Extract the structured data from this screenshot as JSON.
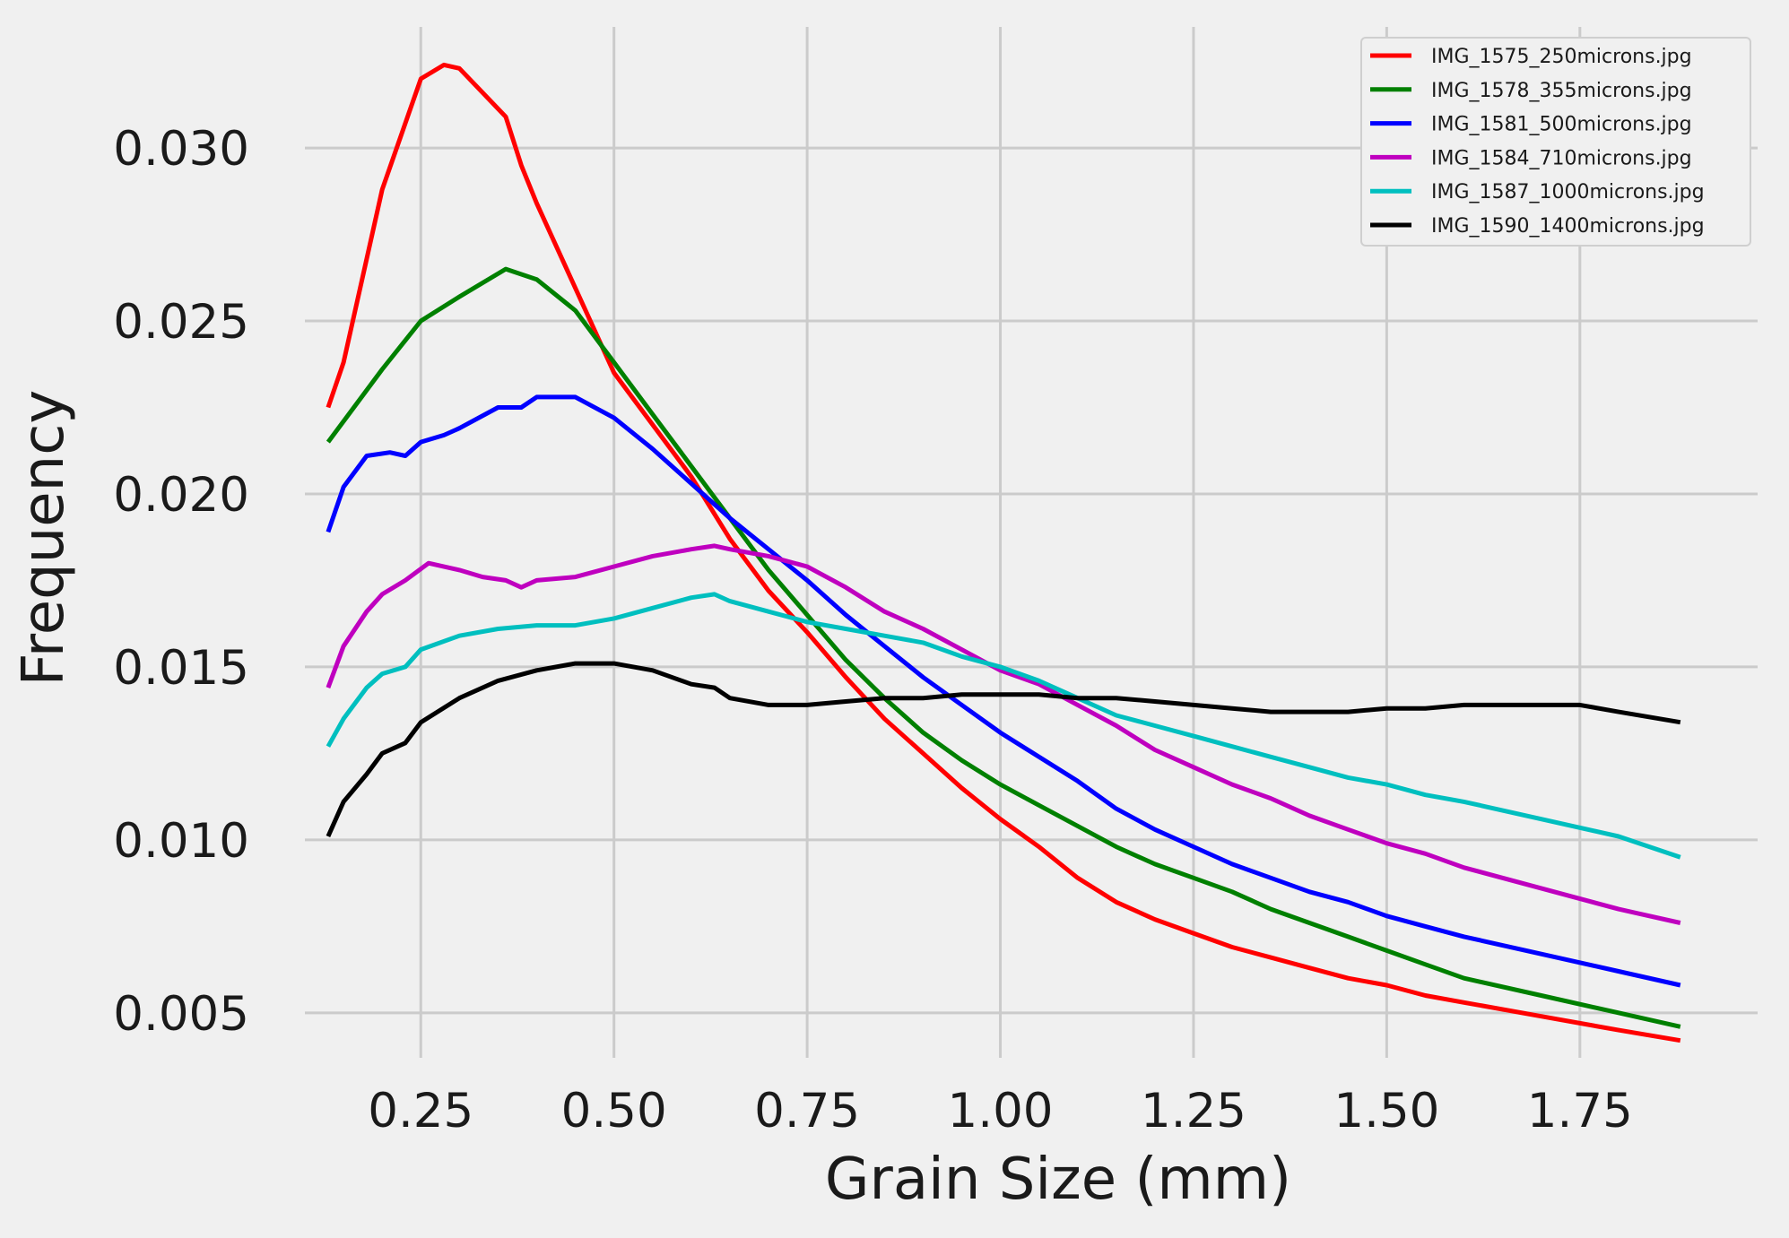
{
  "chart_data": {
    "type": "line",
    "title": "",
    "xlabel": "Grain Size (mm)",
    "ylabel": "Frequency",
    "xlim": [
      0.1,
      1.98
    ],
    "ylim": [
      0.0037,
      0.0335
    ],
    "xticks": [
      0.25,
      0.5,
      0.75,
      1.0,
      1.25,
      1.5,
      1.75
    ],
    "xtick_labels": [
      "0.25",
      "0.50",
      "0.75",
      "1.00",
      "1.25",
      "1.50",
      "1.75"
    ],
    "yticks": [
      0.005,
      0.01,
      0.015,
      0.02,
      0.025,
      0.03
    ],
    "ytick_labels": [
      "0.005",
      "0.010",
      "0.015",
      "0.020",
      "0.025",
      "0.030"
    ],
    "grid": true,
    "legend_position": "top-right",
    "background": "#f0f0f0",
    "series": [
      {
        "name": "IMG_1575_250microns.jpg",
        "color": "#ff0000",
        "x": [
          0.13,
          0.15,
          0.2,
          0.25,
          0.28,
          0.3,
          0.36,
          0.38,
          0.4,
          0.5,
          0.6,
          0.65,
          0.7,
          0.75,
          0.8,
          0.85,
          0.9,
          0.95,
          1.0,
          1.05,
          1.1,
          1.15,
          1.2,
          1.25,
          1.3,
          1.35,
          1.4,
          1.45,
          1.5,
          1.55,
          1.6,
          1.7,
          1.8,
          1.88
        ],
        "y": [
          0.0225,
          0.0238,
          0.0288,
          0.032,
          0.0324,
          0.0323,
          0.0309,
          0.0295,
          0.0284,
          0.0235,
          0.0205,
          0.0187,
          0.0172,
          0.016,
          0.0147,
          0.0135,
          0.0125,
          0.0115,
          0.0106,
          0.0098,
          0.0089,
          0.0082,
          0.0077,
          0.0073,
          0.0069,
          0.0066,
          0.0063,
          0.006,
          0.0058,
          0.0055,
          0.0053,
          0.0049,
          0.0045,
          0.0042
        ]
      },
      {
        "name": "IMG_1578_355microns.jpg",
        "color": "#008000",
        "x": [
          0.13,
          0.2,
          0.25,
          0.3,
          0.36,
          0.4,
          0.45,
          0.5,
          0.55,
          0.6,
          0.65,
          0.7,
          0.75,
          0.8,
          0.85,
          0.9,
          0.95,
          1.0,
          1.05,
          1.1,
          1.15,
          1.2,
          1.25,
          1.3,
          1.35,
          1.4,
          1.45,
          1.5,
          1.55,
          1.6,
          1.7,
          1.8,
          1.88
        ],
        "y": [
          0.0215,
          0.0236,
          0.025,
          0.0257,
          0.0265,
          0.0262,
          0.0253,
          0.0238,
          0.0223,
          0.0208,
          0.0193,
          0.0178,
          0.0165,
          0.0152,
          0.0141,
          0.0131,
          0.0123,
          0.0116,
          0.011,
          0.0104,
          0.0098,
          0.0093,
          0.0089,
          0.0085,
          0.008,
          0.0076,
          0.0072,
          0.0068,
          0.0064,
          0.006,
          0.0055,
          0.005,
          0.0046
        ]
      },
      {
        "name": "IMG_1581_500microns.jpg",
        "color": "#0000ff",
        "x": [
          0.13,
          0.15,
          0.18,
          0.21,
          0.23,
          0.25,
          0.28,
          0.3,
          0.35,
          0.38,
          0.4,
          0.45,
          0.5,
          0.55,
          0.6,
          0.65,
          0.7,
          0.75,
          0.8,
          0.85,
          0.9,
          0.95,
          1.0,
          1.05,
          1.1,
          1.15,
          1.2,
          1.25,
          1.3,
          1.35,
          1.4,
          1.45,
          1.5,
          1.55,
          1.6,
          1.7,
          1.8,
          1.88
        ],
        "y": [
          0.0189,
          0.0202,
          0.0211,
          0.0212,
          0.0211,
          0.0215,
          0.0217,
          0.0219,
          0.0225,
          0.0225,
          0.0228,
          0.0228,
          0.0222,
          0.0213,
          0.0203,
          0.0193,
          0.0184,
          0.0175,
          0.0165,
          0.0156,
          0.0147,
          0.0139,
          0.0131,
          0.0124,
          0.0117,
          0.0109,
          0.0103,
          0.0098,
          0.0093,
          0.0089,
          0.0085,
          0.0082,
          0.0078,
          0.0075,
          0.0072,
          0.0067,
          0.0062,
          0.0058
        ]
      },
      {
        "name": "IMG_1584_710microns.jpg",
        "color": "#bf00bf",
        "x": [
          0.13,
          0.15,
          0.18,
          0.2,
          0.23,
          0.26,
          0.3,
          0.33,
          0.36,
          0.38,
          0.4,
          0.45,
          0.5,
          0.55,
          0.6,
          0.63,
          0.65,
          0.7,
          0.75,
          0.8,
          0.85,
          0.9,
          0.95,
          1.0,
          1.05,
          1.1,
          1.15,
          1.2,
          1.25,
          1.3,
          1.35,
          1.4,
          1.45,
          1.5,
          1.55,
          1.6,
          1.7,
          1.8,
          1.88
        ],
        "y": [
          0.0144,
          0.0156,
          0.0166,
          0.0171,
          0.0175,
          0.018,
          0.0178,
          0.0176,
          0.0175,
          0.0173,
          0.0175,
          0.0176,
          0.0179,
          0.0182,
          0.0184,
          0.0185,
          0.0184,
          0.0182,
          0.0179,
          0.0173,
          0.0166,
          0.0161,
          0.0155,
          0.0149,
          0.0145,
          0.0139,
          0.0133,
          0.0126,
          0.0121,
          0.0116,
          0.0112,
          0.0107,
          0.0103,
          0.0099,
          0.0096,
          0.0092,
          0.0086,
          0.008,
          0.0076
        ]
      },
      {
        "name": "IMG_1587_1000microns.jpg",
        "color": "#00bfbf",
        "x": [
          0.13,
          0.15,
          0.18,
          0.2,
          0.23,
          0.25,
          0.3,
          0.35,
          0.4,
          0.45,
          0.5,
          0.55,
          0.6,
          0.63,
          0.65,
          0.7,
          0.75,
          0.8,
          0.85,
          0.9,
          0.95,
          1.0,
          1.05,
          1.1,
          1.15,
          1.2,
          1.25,
          1.3,
          1.35,
          1.4,
          1.45,
          1.5,
          1.55,
          1.6,
          1.7,
          1.8,
          1.88
        ],
        "y": [
          0.0127,
          0.0135,
          0.0144,
          0.0148,
          0.015,
          0.0155,
          0.0159,
          0.0161,
          0.0162,
          0.0162,
          0.0164,
          0.0167,
          0.017,
          0.0171,
          0.0169,
          0.0166,
          0.0163,
          0.0161,
          0.0159,
          0.0157,
          0.0153,
          0.015,
          0.0146,
          0.0141,
          0.0136,
          0.0133,
          0.013,
          0.0127,
          0.0124,
          0.0121,
          0.0118,
          0.0116,
          0.0113,
          0.0111,
          0.0106,
          0.0101,
          0.0095
        ]
      },
      {
        "name": "IMG_1590_1400microns.jpg",
        "color": "#000000",
        "x": [
          0.13,
          0.15,
          0.18,
          0.2,
          0.23,
          0.25,
          0.3,
          0.35,
          0.4,
          0.45,
          0.5,
          0.55,
          0.6,
          0.63,
          0.65,
          0.7,
          0.75,
          0.8,
          0.85,
          0.9,
          0.95,
          1.0,
          1.05,
          1.1,
          1.15,
          1.2,
          1.25,
          1.3,
          1.35,
          1.4,
          1.45,
          1.5,
          1.55,
          1.6,
          1.7,
          1.75,
          1.8,
          1.88
        ],
        "y": [
          0.0101,
          0.0111,
          0.0119,
          0.0125,
          0.0128,
          0.0134,
          0.0141,
          0.0146,
          0.0149,
          0.0151,
          0.0151,
          0.0149,
          0.0145,
          0.0144,
          0.0141,
          0.0139,
          0.0139,
          0.014,
          0.0141,
          0.0141,
          0.0142,
          0.0142,
          0.0142,
          0.0141,
          0.0141,
          0.014,
          0.0139,
          0.0138,
          0.0137,
          0.0137,
          0.0137,
          0.0138,
          0.0138,
          0.0139,
          0.0139,
          0.0139,
          0.0137,
          0.0134
        ]
      }
    ]
  }
}
